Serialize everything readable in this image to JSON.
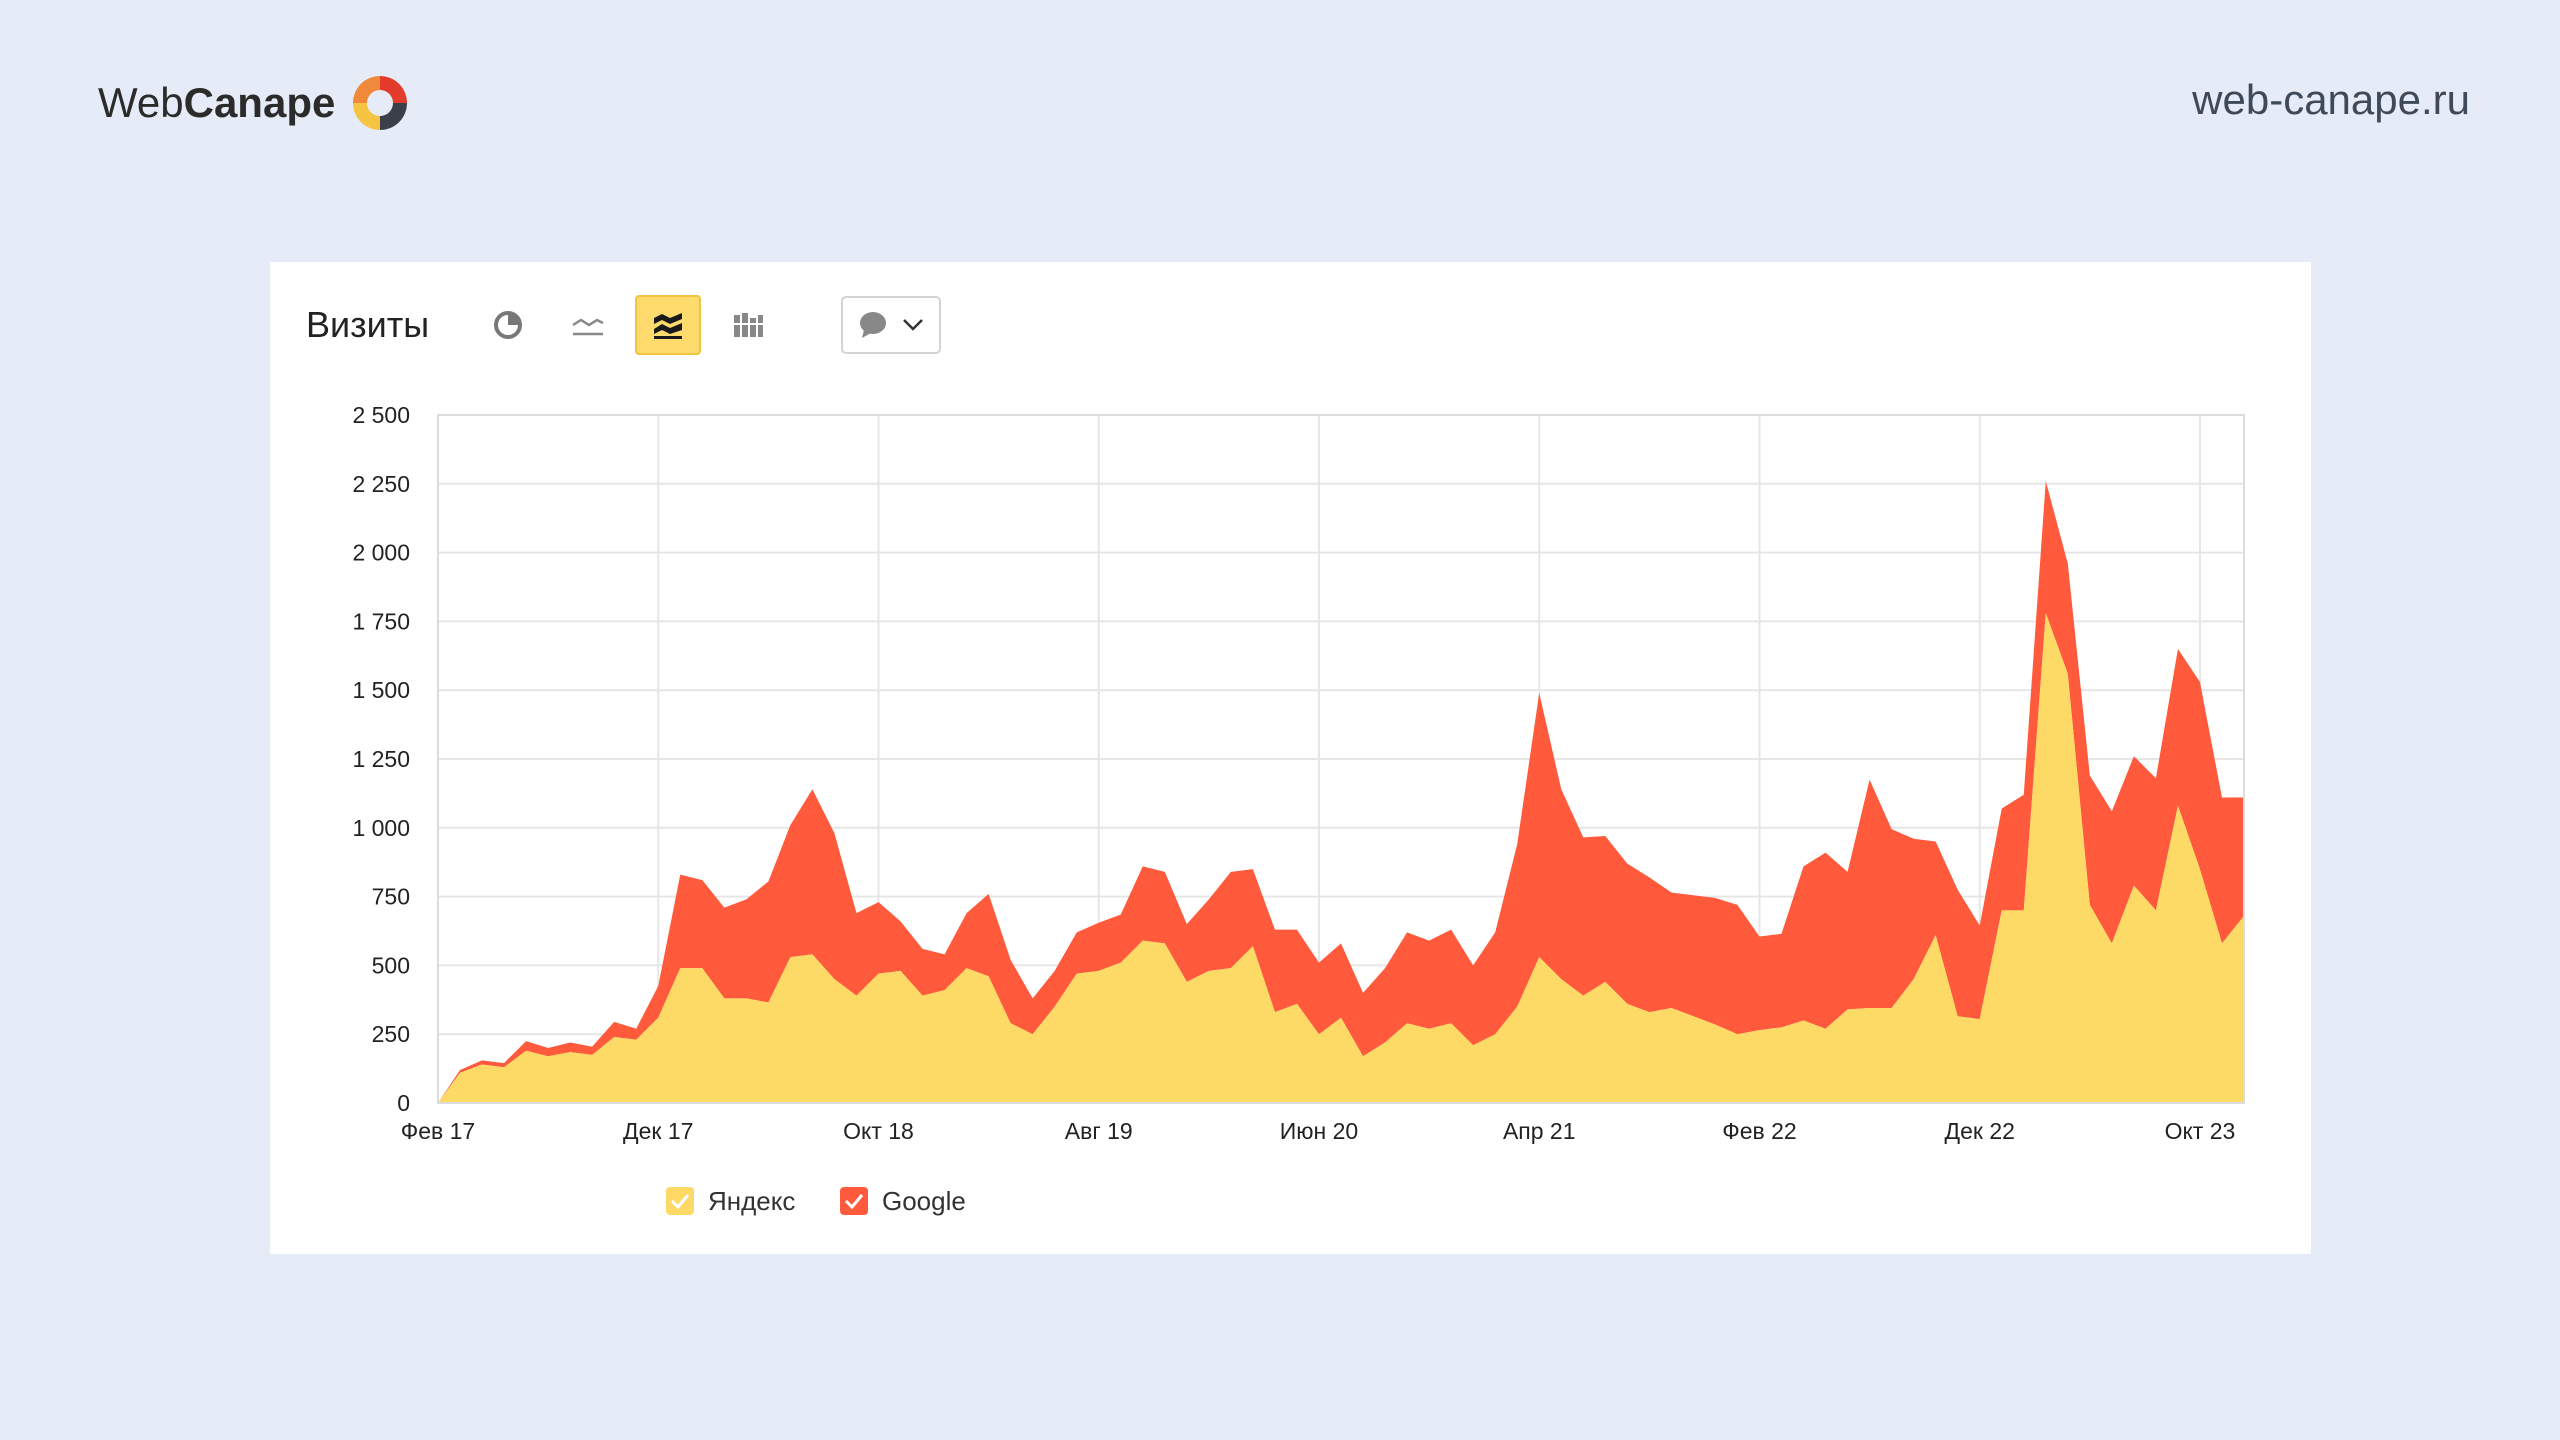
{
  "brand": {
    "logo_part1": "Web",
    "logo_part2": "Canape",
    "site_url": "web-canape.ru"
  },
  "toolbar": {
    "title": "Визиты",
    "buttons": [
      {
        "icon": "pie-chart-icon",
        "active": false
      },
      {
        "icon": "line-chart-icon",
        "active": false
      },
      {
        "icon": "area-stacked-chart-icon",
        "active": true
      },
      {
        "icon": "bar-chart-icon",
        "active": false
      }
    ],
    "annotations_dropdown_icon": "comment-icon"
  },
  "colors": {
    "yandex": "#fdd966",
    "google": "#ff5a3c",
    "background": "#e6ecf7",
    "active_button": "#ffdb6e"
  },
  "chart_data": {
    "type": "area",
    "stacked": true,
    "x_tick_labels": [
      "Фев 17",
      "Дек 17",
      "Окт 18",
      "Авг 19",
      "Июн 20",
      "Апр 21",
      "Фев 22",
      "Дек 22",
      "Окт 23"
    ],
    "x_tick_month_index": [
      0,
      10,
      20,
      30,
      40,
      50,
      60,
      70,
      80
    ],
    "y_ticks": [
      0,
      250,
      500,
      750,
      1000,
      1250,
      1500,
      1750,
      2000,
      2250,
      2500
    ],
    "y_tick_labels": [
      "0",
      "250",
      "500",
      "750",
      "1 000",
      "1 250",
      "1 500",
      "1 750",
      "2 000",
      "2 250",
      "2 500"
    ],
    "ylim": [
      0,
      2500
    ],
    "xlim_months": [
      0,
      82
    ],
    "grid": true,
    "legend_position": "bottom-left",
    "series": [
      {
        "name": "Яндекс",
        "color": "#fdd966",
        "values": [
          0,
          110,
          140,
          130,
          190,
          170,
          185,
          175,
          240,
          230,
          310,
          490,
          490,
          380,
          380,
          365,
          530,
          540,
          450,
          390,
          470,
          480,
          390,
          410,
          490,
          460,
          290,
          250,
          350,
          470,
          480,
          510,
          590,
          580,
          440,
          480,
          490,
          570,
          330,
          360,
          250,
          310,
          170,
          220,
          290,
          270,
          290,
          210,
          250,
          350,
          530,
          450,
          390,
          440,
          360,
          330,
          345,
          315,
          285,
          250,
          265,
          275,
          300,
          270,
          340,
          345,
          345,
          450,
          610,
          315,
          305,
          700,
          700,
          1780,
          1560,
          720,
          580,
          790,
          700,
          1080,
          850,
          580,
          680
        ]
      },
      {
        "name": "Google",
        "color": "#ff5a3c",
        "values": [
          0,
          10,
          15,
          15,
          35,
          30,
          35,
          30,
          55,
          40,
          115,
          340,
          320,
          330,
          360,
          440,
          480,
          600,
          530,
          300,
          260,
          180,
          170,
          130,
          200,
          300,
          230,
          130,
          130,
          150,
          175,
          175,
          270,
          260,
          210,
          260,
          350,
          280,
          300,
          270,
          260,
          270,
          230,
          270,
          330,
          320,
          340,
          290,
          370,
          590,
          960,
          690,
          575,
          530,
          510,
          490,
          420,
          440,
          460,
          470,
          340,
          340,
          560,
          640,
          500,
          830,
          650,
          510,
          340,
          460,
          340,
          370,
          420,
          480,
          400,
          470,
          480,
          470,
          480,
          570,
          680,
          530,
          430
        ]
      }
    ]
  }
}
